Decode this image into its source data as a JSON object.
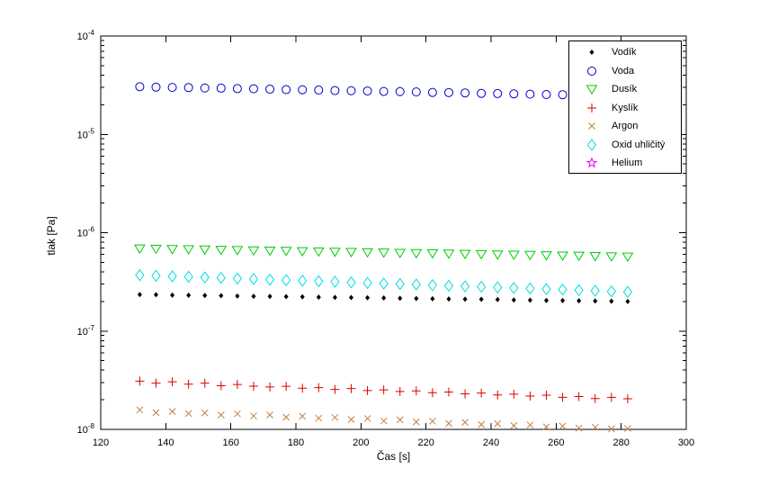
{
  "figure": {
    "background": "#ffffff"
  },
  "chart_data": {
    "type": "scatter",
    "title": "",
    "xlabel": "Čas [s]",
    "ylabel": "tlak [Pa]",
    "xlim": [
      120,
      300
    ],
    "ylim": [
      1e-08,
      0.0001
    ],
    "yscale": "log",
    "grid": false,
    "legend_position": "top-right",
    "xticks": [
      120,
      140,
      160,
      180,
      200,
      220,
      240,
      260,
      280,
      300
    ],
    "ytick_labels": [
      {
        "base": "10",
        "exp": "-4"
      },
      {
        "base": "10",
        "exp": "-5"
      },
      {
        "base": "10",
        "exp": "-6"
      },
      {
        "base": "10",
        "exp": "-7"
      },
      {
        "base": "10",
        "exp": "-8"
      }
    ],
    "x": [
      132,
      137,
      142,
      147,
      152,
      157,
      162,
      167,
      172,
      177,
      182,
      187,
      192,
      197,
      202,
      207,
      212,
      217,
      222,
      227,
      232,
      237,
      242,
      247,
      252,
      257,
      262,
      267,
      272,
      277,
      282
    ],
    "series": [
      {
        "name": "Vodík",
        "marker": "point",
        "color": "#000000",
        "values": [
          2.35e-07,
          2.34e-07,
          2.32e-07,
          2.31e-07,
          2.3e-07,
          2.29e-07,
          2.27e-07,
          2.26e-07,
          2.25e-07,
          2.24e-07,
          2.23e-07,
          2.21e-07,
          2.2e-07,
          2.19e-07,
          2.18e-07,
          2.17e-07,
          2.15e-07,
          2.14e-07,
          2.13e-07,
          2.12e-07,
          2.11e-07,
          2.1e-07,
          2.09e-07,
          2.07e-07,
          2.06e-07,
          2.05e-07,
          2.04e-07,
          2.03e-07,
          2.02e-07,
          2.01e-07,
          2e-07
        ]
      },
      {
        "name": "Voda",
        "marker": "circle",
        "color": "#0000CC",
        "values": [
          3.05e-05,
          3.02e-05,
          3e-05,
          2.99e-05,
          2.96e-05,
          2.95e-05,
          2.92e-05,
          2.91e-05,
          2.88e-05,
          2.85e-05,
          2.84e-05,
          2.82e-05,
          2.79e-05,
          2.78e-05,
          2.76e-05,
          2.73e-05,
          2.72e-05,
          2.7e-05,
          2.67e-05,
          2.66e-05,
          2.64e-05,
          2.61e-05,
          2.6e-05,
          2.58e-05,
          2.56e-05,
          2.54e-05,
          2.53e-05,
          2.5e-05,
          2.49e-05,
          2.47e-05,
          2.45e-05
        ]
      },
      {
        "name": "Dusík",
        "marker": "triangle-down",
        "color": "#00CC00",
        "values": [
          6.9e-07,
          6.85e-07,
          6.81e-07,
          6.77e-07,
          6.73e-07,
          6.68e-07,
          6.64e-07,
          6.6e-07,
          6.56e-07,
          6.52e-07,
          6.47e-07,
          6.43e-07,
          6.39e-07,
          6.35e-07,
          6.31e-07,
          6.27e-07,
          6.23e-07,
          6.19e-07,
          6.16e-07,
          6.12e-07,
          6.08e-07,
          6.04e-07,
          6e-07,
          5.96e-07,
          5.93e-07,
          5.89e-07,
          5.85e-07,
          5.82e-07,
          5.78e-07,
          5.74e-07,
          5.7e-07
        ]
      },
      {
        "name": "Kyslík",
        "marker": "plus",
        "color": "#DD0000",
        "values": [
          3.1e-08,
          2.95e-08,
          3.05e-08,
          2.88e-08,
          2.95e-08,
          2.78e-08,
          2.86e-08,
          2.75e-08,
          2.7e-08,
          2.74e-08,
          2.62e-08,
          2.66e-08,
          2.55e-08,
          2.6e-08,
          2.48e-08,
          2.52e-08,
          2.43e-08,
          2.46e-08,
          2.36e-08,
          2.4e-08,
          2.3e-08,
          2.34e-08,
          2.24e-08,
          2.28e-08,
          2.18e-08,
          2.23e-08,
          2.12e-08,
          2.16e-08,
          2.06e-08,
          2.12e-08,
          2.05e-08
        ]
      },
      {
        "name": "Argon",
        "marker": "x",
        "color": "#BF8040",
        "values": [
          1.58e-08,
          1.48e-08,
          1.52e-08,
          1.45e-08,
          1.47e-08,
          1.4e-08,
          1.44e-08,
          1.37e-08,
          1.4e-08,
          1.33e-08,
          1.36e-08,
          1.3e-08,
          1.32e-08,
          1.26e-08,
          1.29e-08,
          1.22e-08,
          1.25e-08,
          1.19e-08,
          1.21e-08,
          1.15e-08,
          1.18e-08,
          1.12e-08,
          1.14e-08,
          1.09e-08,
          1.11e-08,
          1.06e-08,
          1.08e-08,
          1.03e-08,
          1.05e-08,
          1.01e-08,
          1.02e-08
        ]
      },
      {
        "name": "Oxid uhličitý",
        "marker": "diamond",
        "color": "#00DDDD",
        "values": [
          3.7e-07,
          3.65e-07,
          3.6e-07,
          3.56e-07,
          3.51e-07,
          3.47e-07,
          3.42e-07,
          3.38e-07,
          3.33e-07,
          3.29e-07,
          3.25e-07,
          3.21e-07,
          3.17e-07,
          3.12e-07,
          3.08e-07,
          3.04e-07,
          3.01e-07,
          2.97e-07,
          2.93e-07,
          2.89e-07,
          2.85e-07,
          2.82e-07,
          2.78e-07,
          2.74e-07,
          2.71e-07,
          2.67e-07,
          2.64e-07,
          2.6e-07,
          2.57e-07,
          2.53e-07,
          2.5e-07
        ]
      },
      {
        "name": "Helium",
        "marker": "pentagram",
        "color": "#EE00EE",
        "values": []
      }
    ]
  }
}
